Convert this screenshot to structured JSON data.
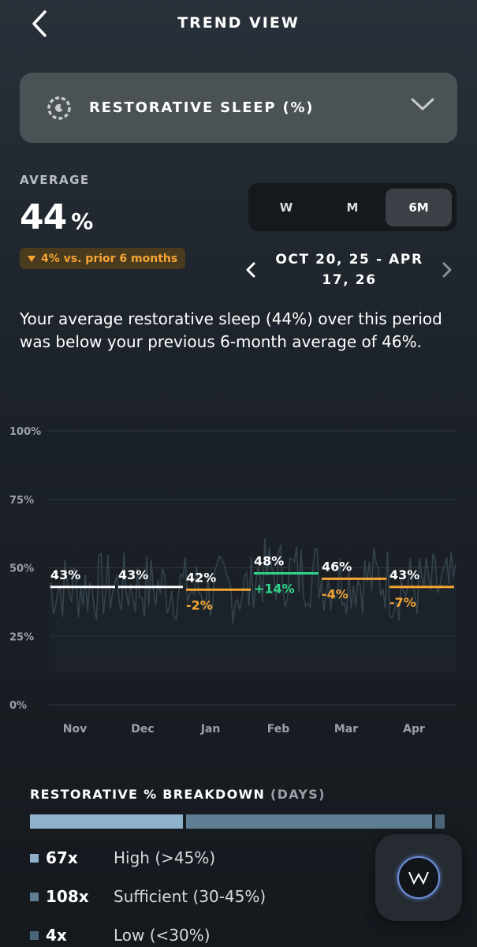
{
  "header": {
    "title": "TREND VIEW",
    "back_icon": "chevron-left-icon"
  },
  "metric_selector": {
    "label": "RESTORATIVE SLEEP (%)",
    "icon": "restorative-sleep-icon",
    "chevron_icon": "chevron-down-icon"
  },
  "average": {
    "label": "AVERAGE",
    "value": "44",
    "unit": "%",
    "delta_text": "4% vs. prior 6 months",
    "delta_direction": "down",
    "delta_color": "#f5a534"
  },
  "range_tabs": [
    {
      "label": "W",
      "active": false
    },
    {
      "label": "M",
      "active": false
    },
    {
      "label": "6M",
      "active": true
    }
  ],
  "date_range": {
    "text": "OCT 20, 25 - APR 17, 26"
  },
  "summary": "Your average restorative sleep (44%) over this period was below your previous 6-month average of 46%.",
  "chart_data": {
    "type": "line",
    "y_tick_labels": [
      "100%",
      "75%",
      "50%",
      "25%",
      "0%"
    ],
    "y_ticks": [
      100,
      75,
      50,
      25,
      0
    ],
    "ylim": [
      0,
      100
    ],
    "categories": [
      "Nov",
      "Dec",
      "Jan",
      "Feb",
      "Mar",
      "Apr"
    ],
    "monthly_avg": [
      43,
      43,
      42,
      48,
      46,
      43
    ],
    "value_labels": [
      "43%",
      "43%",
      "42%",
      "48%",
      "46%",
      "43%"
    ],
    "change_labels": [
      "",
      "",
      "-2%",
      "+14%",
      "-4%",
      "-7%"
    ],
    "avg_line_colors": [
      "#ffffff",
      "#ffffff",
      "#f5a534",
      "#2fd38a",
      "#f5a534",
      "#f5a534"
    ],
    "daily_series_color": "#34424c",
    "grid": true
  },
  "breakdown": {
    "title": "RESTORATIVE % BREAKDOWN",
    "subtitle": "(DAYS)",
    "items": [
      {
        "count": "67x",
        "label": "High (>45%)",
        "days": 67,
        "color": "#8eb2cc"
      },
      {
        "count": "108x",
        "label": "Sufficient (30-45%)",
        "days": 108,
        "color": "#5f7e93"
      },
      {
        "count": "4x",
        "label": "Low (<30%)",
        "days": 4,
        "color": "#4a6577"
      }
    ]
  },
  "assistant_button": {
    "icon": "whoop-coach-icon"
  }
}
